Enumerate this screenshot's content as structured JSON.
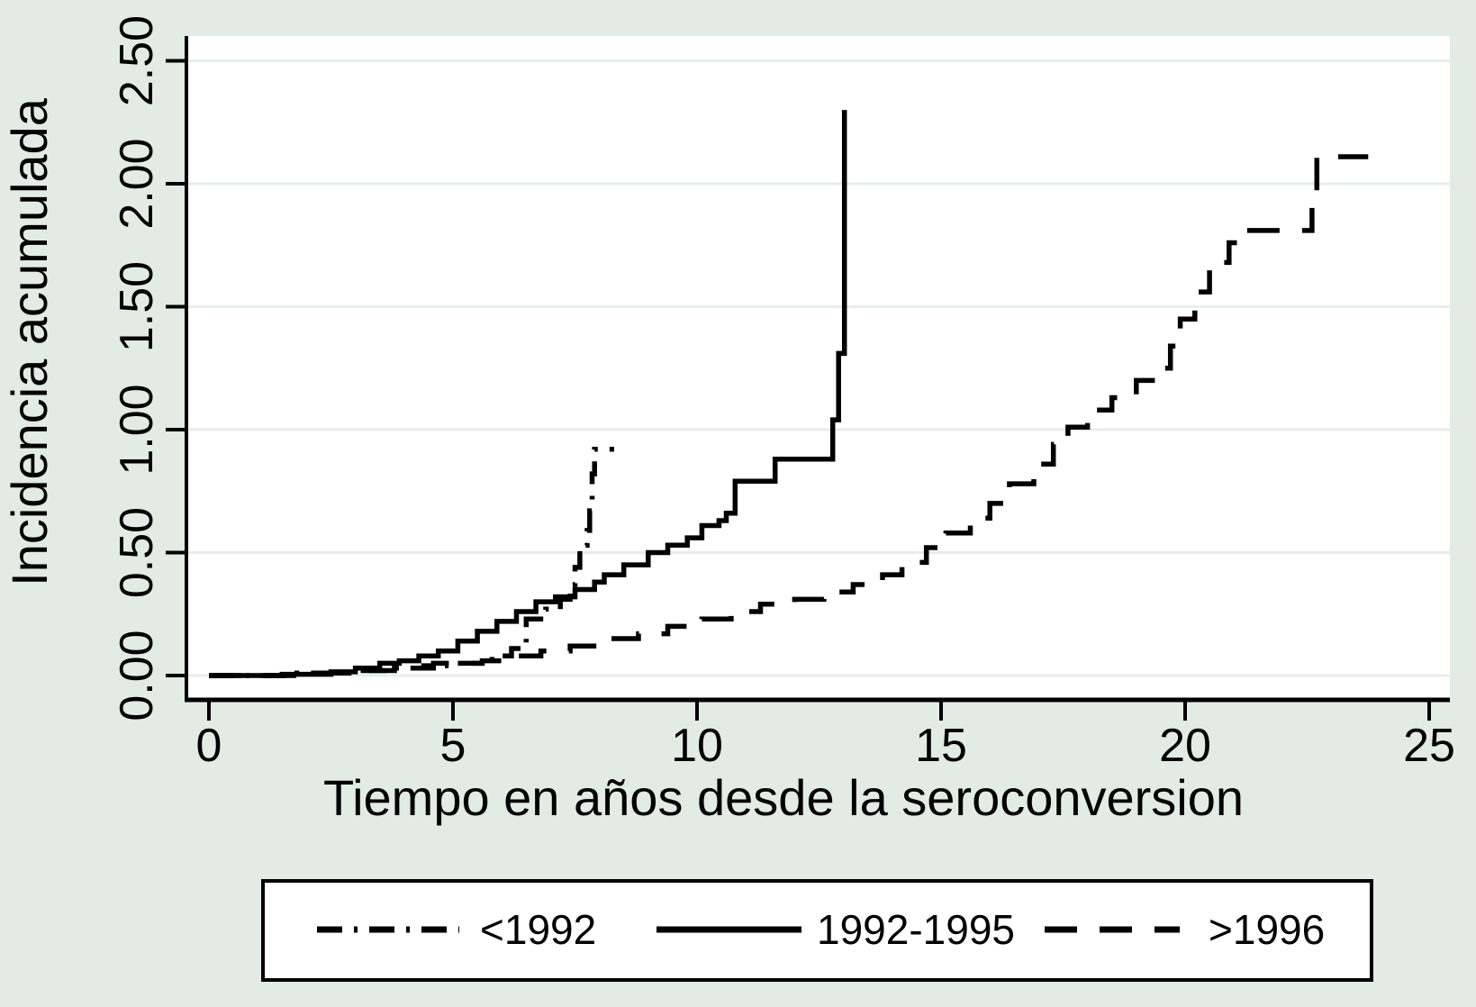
{
  "colors": {
    "background": "#e2ebe4",
    "plot_background": "#ffffff",
    "gridline": "#e6eee8",
    "line": "#000000",
    "legend_background": "#ffffff",
    "legend_border": "#000000"
  },
  "chart_data": {
    "type": "line",
    "subtype": "step-cumulative-incidence",
    "title": "",
    "xlabel": "Tiempo en años desde la seroconversion",
    "ylabel": "Incidencia acumulada",
    "xlim": [
      0,
      25.5
    ],
    "ylim": [
      0,
      2.56
    ],
    "x_ticks": [
      0,
      5,
      10,
      15,
      20,
      25
    ],
    "x_tick_labels": [
      "0",
      "5",
      "10",
      "15",
      "20",
      "25"
    ],
    "y_ticks": [
      0,
      0.5,
      1,
      1.5,
      2,
      2.5
    ],
    "y_tick_labels": [
      "0.00",
      "0.50",
      "1.00",
      "1.50",
      "2.00",
      "2.50"
    ],
    "grid": "horizontal",
    "legend_position": "bottom",
    "series": [
      {
        "name": "<1992",
        "style": "dashdot",
        "points": [
          [
            0,
            0
          ],
          [
            0.6,
            0
          ],
          [
            1.8,
            0.01
          ],
          [
            3.0,
            0.02
          ],
          [
            3.6,
            0.03
          ],
          [
            4.4,
            0.04
          ],
          [
            5.0,
            0.05
          ],
          [
            5.8,
            0.08
          ],
          [
            6.2,
            0.11
          ],
          [
            6.5,
            0.23
          ],
          [
            6.9,
            0.27
          ],
          [
            7.2,
            0.31
          ],
          [
            7.4,
            0.37
          ],
          [
            7.5,
            0.44
          ],
          [
            7.6,
            0.53
          ],
          [
            7.75,
            0.59
          ],
          [
            7.8,
            0.67
          ],
          [
            7.85,
            0.82
          ],
          [
            7.9,
            0.92
          ],
          [
            8.3,
            0.92
          ]
        ]
      },
      {
        "name": "1992-1995",
        "style": "solid",
        "points": [
          [
            0,
            0
          ],
          [
            0.5,
            0
          ],
          [
            1.5,
            0.005
          ],
          [
            2.5,
            0.015
          ],
          [
            3.0,
            0.03
          ],
          [
            3.5,
            0.05
          ],
          [
            3.9,
            0.06
          ],
          [
            4.3,
            0.08
          ],
          [
            4.7,
            0.1
          ],
          [
            5.1,
            0.14
          ],
          [
            5.5,
            0.18
          ],
          [
            5.9,
            0.22
          ],
          [
            6.3,
            0.26
          ],
          [
            6.7,
            0.3
          ],
          [
            7.1,
            0.32
          ],
          [
            7.5,
            0.35
          ],
          [
            7.9,
            0.38
          ],
          [
            8.1,
            0.41
          ],
          [
            8.5,
            0.45
          ],
          [
            9.0,
            0.5
          ],
          [
            9.4,
            0.53
          ],
          [
            9.8,
            0.56
          ],
          [
            10.1,
            0.61
          ],
          [
            10.45,
            0.63
          ],
          [
            10.6,
            0.66
          ],
          [
            10.78,
            0.79
          ],
          [
            11.6,
            0.88
          ],
          [
            12.78,
            1.04
          ],
          [
            12.9,
            1.31
          ],
          [
            13.02,
            2.3
          ]
        ]
      },
      {
        "name": ">1996",
        "style": "dash",
        "points": [
          [
            0,
            0
          ],
          [
            0.8,
            0
          ],
          [
            2.0,
            0.01
          ],
          [
            3.0,
            0.02
          ],
          [
            3.8,
            0.03
          ],
          [
            4.6,
            0.05
          ],
          [
            5.6,
            0.06
          ],
          [
            6.1,
            0.08
          ],
          [
            6.8,
            0.1
          ],
          [
            7.4,
            0.12
          ],
          [
            8.2,
            0.15
          ],
          [
            8.8,
            0.17
          ],
          [
            9.4,
            0.2
          ],
          [
            10.1,
            0.23
          ],
          [
            10.7,
            0.26
          ],
          [
            11.3,
            0.29
          ],
          [
            12.0,
            0.31
          ],
          [
            12.6,
            0.34
          ],
          [
            13.2,
            0.37
          ],
          [
            13.8,
            0.41
          ],
          [
            14.2,
            0.46
          ],
          [
            14.7,
            0.52
          ],
          [
            15.1,
            0.58
          ],
          [
            15.6,
            0.64
          ],
          [
            16.0,
            0.7
          ],
          [
            16.4,
            0.78
          ],
          [
            16.9,
            0.86
          ],
          [
            17.3,
            0.94
          ],
          [
            17.6,
            1.01
          ],
          [
            18.0,
            1.08
          ],
          [
            18.5,
            1.13
          ],
          [
            19.0,
            1.2
          ],
          [
            19.4,
            1.25
          ],
          [
            19.7,
            1.34
          ],
          [
            19.9,
            1.45
          ],
          [
            20.2,
            1.56
          ],
          [
            20.5,
            1.68
          ],
          [
            20.9,
            1.76
          ],
          [
            21.2,
            1.81
          ],
          [
            22.45,
            1.81
          ],
          [
            22.6,
            1.93
          ],
          [
            22.7,
            2.11
          ],
          [
            23.75,
            2.11
          ]
        ]
      }
    ]
  }
}
